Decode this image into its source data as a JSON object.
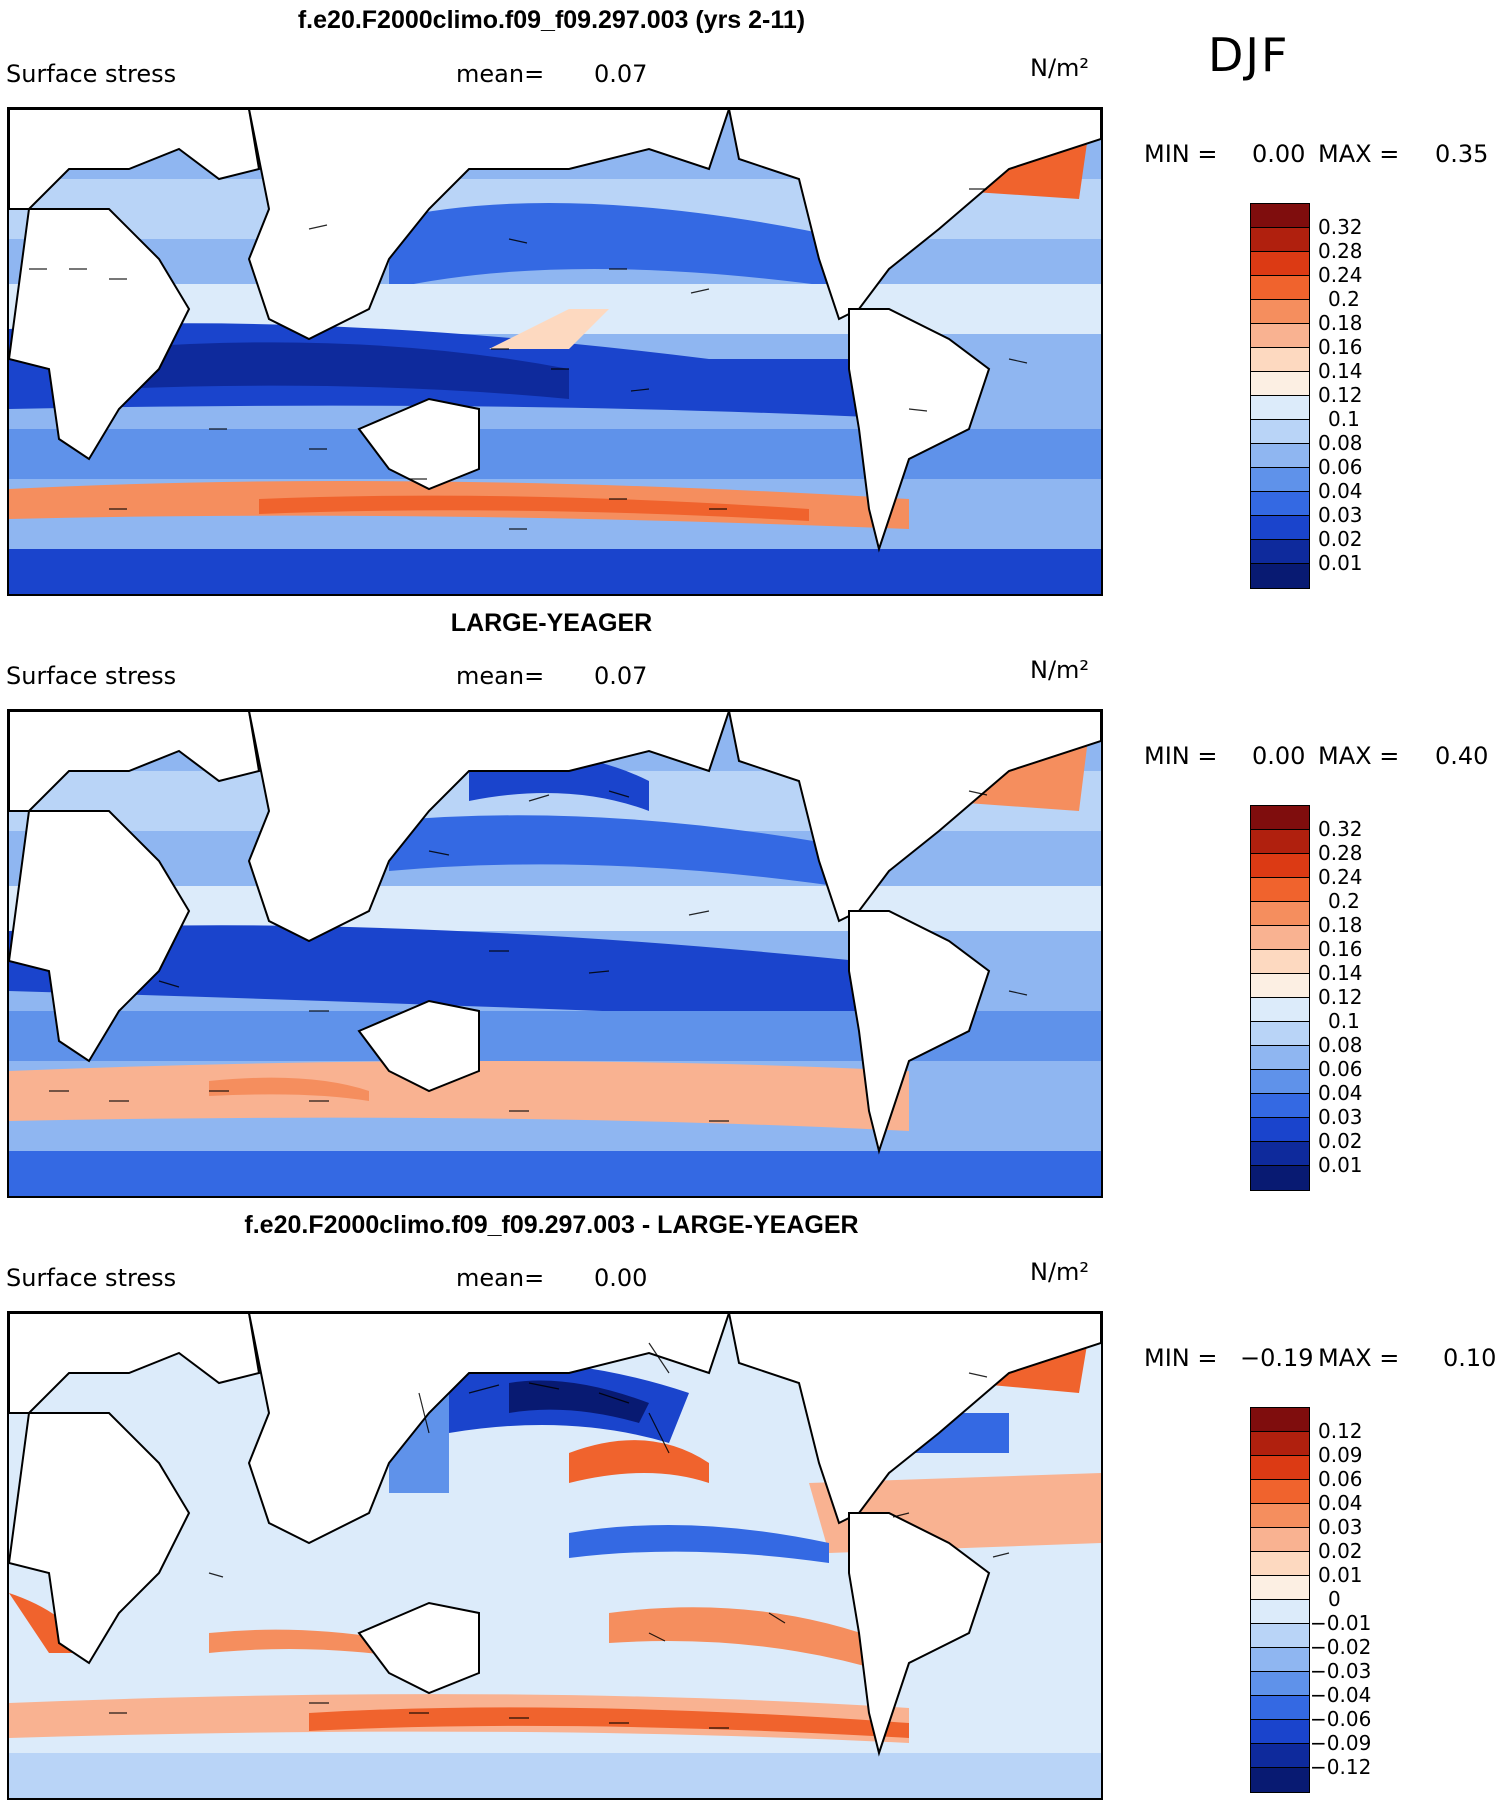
{
  "season": "DJF",
  "panels": [
    {
      "title": "f.e20.F2000climo.f09_f09.297.003 (yrs 2-11)",
      "variable": "Surface stress",
      "mean_label": "mean=",
      "mean_value": "0.07",
      "units": "N/m²",
      "min_label": "MIN =",
      "min_value": "0.00",
      "max_label": "MAX =",
      "max_value": "0.35",
      "colorbar_ticks": [
        "0.32",
        "0.28",
        "0.24",
        "0.2",
        "0.18",
        "0.16",
        "0.14",
        "0.12",
        "0.1",
        "0.08",
        "0.06",
        "0.04",
        "0.03",
        "0.02",
        "0.01"
      ],
      "colorbar_colors": [
        "#7f0d0d",
        "#b0200e",
        "#dc3a14",
        "#f0632d",
        "#f58e5e",
        "#f9b291",
        "#fdd9c0",
        "#fcefe3",
        "#dcebfa",
        "#b9d4f7",
        "#8fb6f1",
        "#5f92ea",
        "#3469e3",
        "#1a44cc",
        "#0e2a9c",
        "#081a72"
      ]
    },
    {
      "title": "LARGE-YEAGER",
      "variable": "Surface stress",
      "mean_label": "mean=",
      "mean_value": "0.07",
      "units": "N/m²",
      "min_label": "MIN =",
      "min_value": "0.00",
      "max_label": "MAX =",
      "max_value": "0.40",
      "colorbar_ticks": [
        "0.32",
        "0.28",
        "0.24",
        "0.2",
        "0.18",
        "0.16",
        "0.14",
        "0.12",
        "0.1",
        "0.08",
        "0.06",
        "0.04",
        "0.03",
        "0.02",
        "0.01"
      ],
      "colorbar_colors": [
        "#7f0d0d",
        "#b0200e",
        "#dc3a14",
        "#f0632d",
        "#f58e5e",
        "#f9b291",
        "#fdd9c0",
        "#fcefe3",
        "#dcebfa",
        "#b9d4f7",
        "#8fb6f1",
        "#5f92ea",
        "#3469e3",
        "#1a44cc",
        "#0e2a9c",
        "#081a72"
      ]
    },
    {
      "title": "f.e20.F2000climo.f09_f09.297.003 - LARGE-YEAGER",
      "variable": "Surface stress",
      "mean_label": "mean=",
      "mean_value": "0.00",
      "units": "N/m²",
      "min_label": "MIN =",
      "min_value": "−0.19",
      "max_label": "MAX =",
      "max_value": "0.10",
      "colorbar_ticks": [
        "0.12",
        "0.09",
        "0.06",
        "0.04",
        "0.03",
        "0.02",
        "0.01",
        "0",
        "−0.01",
        "−0.02",
        "−0.03",
        "−0.04",
        "−0.06",
        "−0.09",
        "−0.12"
      ],
      "colorbar_colors": [
        "#7f0d0d",
        "#b0200e",
        "#dc3a14",
        "#f0632d",
        "#f58e5e",
        "#f9b291",
        "#fdd9c0",
        "#fcefe3",
        "#dcebfa",
        "#b9d4f7",
        "#8fb6f1",
        "#5f92ea",
        "#3469e3",
        "#1a44cc",
        "#0e2a9c",
        "#081a72"
      ]
    }
  ]
}
